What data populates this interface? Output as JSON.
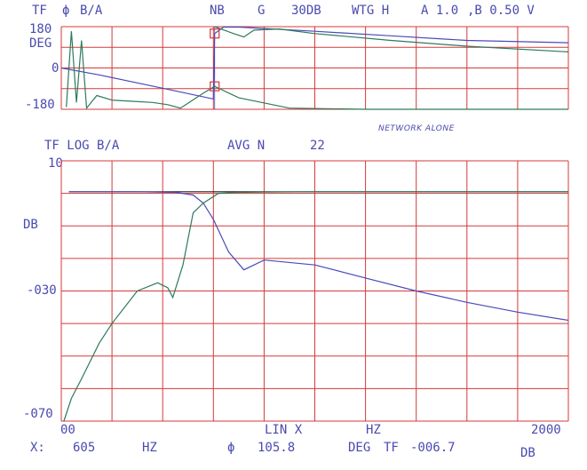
{
  "header_top": {
    "tf_label": "TF",
    "phi": "ϕ",
    "ratio": "B/A",
    "nb": "NB",
    "g": "G",
    "range": "30DB",
    "wtg": "WTG H",
    "scale_a": "A 1.0",
    "scale_b": ",B 0.50 V"
  },
  "header_bottom": {
    "tf_label": "TF LOG B/A",
    "avg": "AVG N",
    "avg_count": "22"
  },
  "annotation": "NETWORK ALONE",
  "readout": {
    "x_label": "X:",
    "x_value": "605",
    "x_unit": "HZ",
    "phi": "ϕ",
    "phi_value": "105.8",
    "deg": "DEG",
    "tf": "TF",
    "tf_value": "-006.7",
    "db": "DB"
  },
  "x_axis": {
    "start_label": "00",
    "scale_label": "LIN X",
    "unit_label": "HZ",
    "end_label": "2000"
  },
  "chart_data": [
    {
      "type": "line",
      "yunit_label": "DEG",
      "ytick_labels": [
        "180",
        "0",
        "-180"
      ],
      "xlim": [
        0,
        2000
      ],
      "ylim": [
        -180,
        180
      ],
      "colors": {
        "grid": "#d43a3a",
        "blue": "#4a4ab8",
        "green": "#2e7a5c"
      },
      "series": [
        {
          "color_key": "blue",
          "x": [
            0,
            150,
            300,
            450,
            600,
            605,
            640,
            700,
            1000,
            1300,
            1600,
            2000
          ],
          "y": [
            0,
            -30,
            -65,
            -100,
            -135,
            150,
            178,
            178,
            160,
            140,
            120,
            110
          ]
        },
        {
          "color_key": "green",
          "x": [
            20,
            40,
            60,
            80,
            100,
            140,
            200,
            280,
            360,
            420,
            470,
            560,
            605,
            700,
            900,
            1200,
            1500,
            1800,
            2000
          ],
          "y": [
            -170,
            160,
            -150,
            120,
            -175,
            -120,
            -140,
            -145,
            -150,
            -160,
            -175,
            -110,
            -80,
            -130,
            -175,
            -180,
            -180,
            -180,
            -180
          ]
        },
        {
          "color_key": "green",
          "x": [
            605,
            680,
            720,
            760,
            860,
            1000,
            1300,
            1600,
            2000
          ],
          "y": [
            180,
            150,
            135,
            165,
            170,
            150,
            120,
            95,
            70
          ]
        }
      ]
    },
    {
      "type": "line",
      "yunit_label": "DB",
      "ytick_labels": [
        "10",
        "-030",
        "-070"
      ],
      "xlim": [
        0,
        2000
      ],
      "ylim": [
        -70,
        10
      ],
      "colors": {
        "grid": "#d43a3a",
        "blue": "#4a4ab8",
        "green": "#2e7a5c",
        "ref": "#222222"
      },
      "series": [
        {
          "color_key": "ref",
          "x": [
            30,
            2000
          ],
          "y": [
            0.5,
            0.5
          ]
        },
        {
          "color_key": "blue",
          "x": [
            30,
            300,
            450,
            520,
            560,
            600,
            660,
            720,
            800,
            1000,
            1200,
            1400,
            1600,
            1800,
            2000
          ],
          "y": [
            0.5,
            0.5,
            0.3,
            -0.5,
            -3,
            -8,
            -18,
            -23.5,
            -20.5,
            -22,
            -26,
            -30,
            -33.5,
            -36.5,
            -39
          ]
        },
        {
          "color_key": "green",
          "x": [
            10,
            40,
            80,
            150,
            200,
            300,
            380,
            420,
            440,
            480,
            520,
            560,
            620,
            700,
            800,
            1000,
            1400,
            2000
          ],
          "y": [
            -70,
            -63,
            -57,
            -46,
            -40,
            -30,
            -27.5,
            -29,
            -32,
            -22,
            -6,
            -3,
            0,
            0.3,
            0.4,
            0.5,
            0.5,
            0.5
          ]
        }
      ]
    }
  ]
}
